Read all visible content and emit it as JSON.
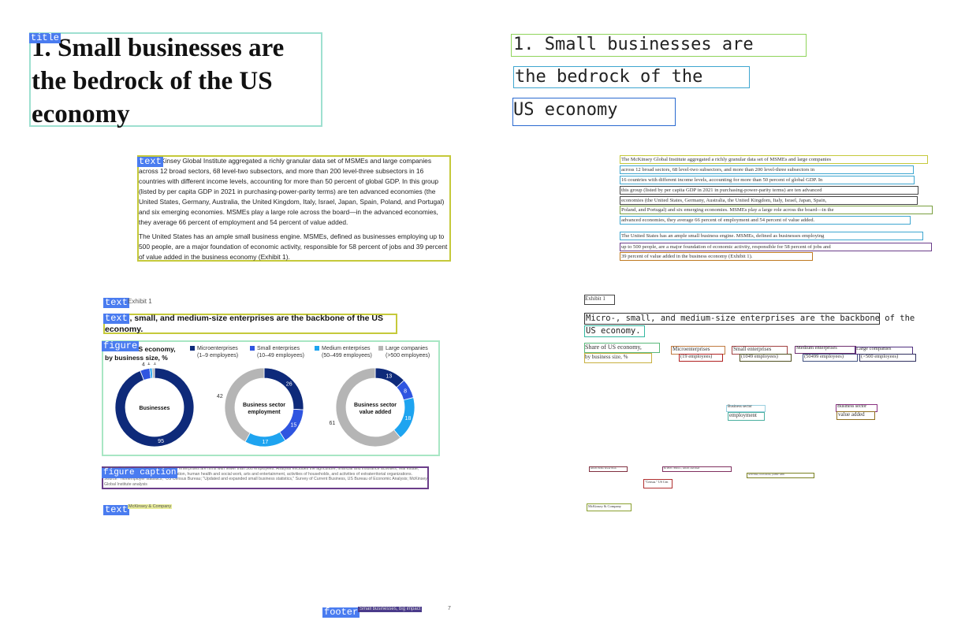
{
  "labels": {
    "title": "title",
    "text": "text",
    "figure": "figure",
    "figure_caption": "figure caption",
    "footer": "footer"
  },
  "colors": {
    "tag_bg": "#4a7cf0",
    "title_box": "#9ee0d0",
    "text_box": "#c5c93a",
    "figure_box": "#a8e6c4",
    "caption_box": "#6b3d8a",
    "micro": "#0e2a7a",
    "small": "#2f55e0",
    "medium": "#1ea4f0",
    "large": "#b5b5b5"
  },
  "left": {
    "title": "1. Small businesses are the bedrock of the US economy",
    "para1": "The McKinsey Global Institute aggregated a richly granular data set of MSMEs and large companies across 12 broad sectors, 68 level-two subsectors, and more than 200 level-three subsectors in 16 countries with different income levels, accounting for more than 50 percent of global GDP. In this group (listed by per capita GDP in 2021 in purchasing-power-parity terms) are ten advanced economies (the United States, Germany, Australia, the United Kingdom, Italy, Israel, Japan, Spain, Poland, and Portugal) and six emerging economies. MSMEs play a large role across the board—in the advanced economies, they average 66 percent of employment and 54 percent of value added.",
    "para2": "The United States has an ample small business engine. MSMEs, defined as businesses employing up to 500 people, are a major foundation of economic activity, responsible for 58 percent of jobs and 39 percent of value added in the business economy (Exhibit 1).",
    "exhibit_label": "Exhibit 1",
    "exhibit_title": "Micro-, small, and medium-size enterprises are the backbone of the US economy.",
    "figure_subtitle_1": "Share of US economy,",
    "figure_subtitle_2": "by business size, %",
    "caption": "¹In 2021. Micro-, small, and medium-size enterprises are firms with fewer than 500 employees. Analysis excludes the agriculture, financial and insurance activities, real estate, public administration and defense, education, human health and social work, arts and entertainment, activities of households, and activities of extraterritorial organizations.",
    "source": "Source: \"Nonemployer statistics,\" US Census Bureau; \"Updated and expanded small business statistics,\" Survey of Current Business, US Bureau of Economic Analysis; McKinsey Global Institute analysis",
    "org": "McKinsey & Company",
    "footer": "Small businesses, big impact",
    "page": "7"
  },
  "chart_data": {
    "type": "pie",
    "title": "Share of US economy, by business size, %",
    "legend": [
      {
        "name": "Microenterprises",
        "desc": "(1–9 employees)",
        "color": "#0e2a7a"
      },
      {
        "name": "Small enterprises",
        "desc": "(10–49 employees)",
        "color": "#2f55e0"
      },
      {
        "name": "Medium enterprises",
        "desc": "(50–499 employees)",
        "color": "#1ea4f0"
      },
      {
        "name": "Large companies",
        "desc": "(>500 employees)",
        "color": "#b5b5b5"
      }
    ],
    "donuts": [
      {
        "center_1": "Businesses",
        "center_2": "",
        "values": [
          95,
          4,
          1,
          1
        ],
        "labels": [
          "95",
          "4",
          "1",
          "1"
        ]
      },
      {
        "center_1": "Business sector",
        "center_2": "employment",
        "values": [
          26,
          15,
          17,
          42
        ],
        "labels": [
          "26",
          "15",
          "17",
          "42"
        ]
      },
      {
        "center_1": "Business sector",
        "center_2": "value added",
        "values": [
          13,
          8,
          18,
          61
        ],
        "labels": [
          "13",
          "8",
          "18",
          "61"
        ]
      }
    ]
  },
  "right": {
    "t1": "1. Small businesses are",
    "t2": "the bedrock of the",
    "t3": "US economy",
    "lines": [
      "The McKinsey Global Institute aggregated a richly granular data set of MSMEs and large companies",
      "across 12 broad sectors, 68 level-two subsectors, and more than 200 level-three subsectors in",
      "16 countries with different income levels, accounting for more than 50 percent of global GDP. In",
      "this group (listed by per capita GDP in 2021 in purchasing-power-parity terms) are ten advanced",
      "economies (the United States, Germany, Australia, the United Kingdom, Italy, Israel, Japan, Spain,",
      "Poland, and Portugal) and six emerging economies. MSMEs play a large role across the board—in the",
      "advanced economies, they average 66 percent of employment and 54 percent of value added.",
      "The United States has an ample small business engine. MSMEs, defined as businesses employing",
      "up to 500 people, are a major foundation of economic activity, responsible for 58 percent of jobs and",
      "39 percent of value added in the business economy (Exhibit 1)."
    ],
    "exhibit": "Exhibit 1",
    "et1": "Micro-, small, and medium-size enterprises are the backbone of the",
    "et2": "US economy.",
    "s1": "Share of US economy,",
    "s2": "by business size, %",
    "l1a": "Microenterprises",
    "l1b": "(19 employees)",
    "l2a": "Small enterprises",
    "l2b": "(1049 employees)",
    "l3a": "Medium enterprises",
    "l3b": "(50499 employees)",
    "l4a": "Large companies",
    "l4b": "(>500 employees)",
    "c1a": "Business sector",
    "c1b": "employment",
    "c2a": "Business sector",
    "c2b": "value added",
    "f1": "small, firms fewer than",
    "f2": "In 2021. Micro-, small, and med",
    "f3": "activities, real estate, public adm",
    "f4": "\"Census.\" US Cen",
    "f5": "McKinsey & Company"
  }
}
